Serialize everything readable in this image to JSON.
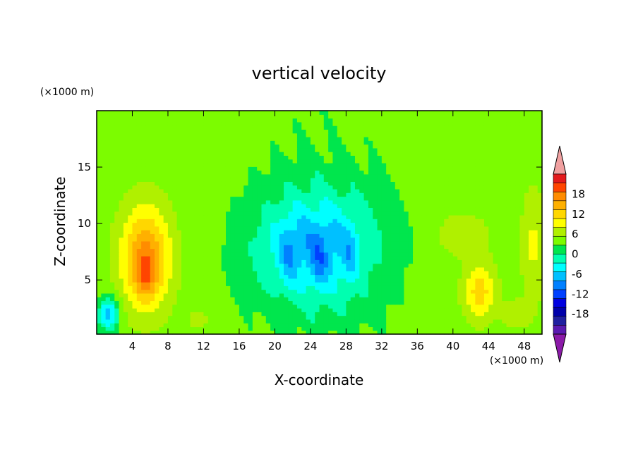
{
  "chart_data": {
    "type": "heatmap",
    "title": "vertical velocity",
    "xlabel": "X-coordinate",
    "ylabel": "Z-coordinate",
    "x_unit": "(×1000 m)",
    "y_unit": "(×1000 m)",
    "xlim": [
      0,
      50
    ],
    "ylim": [
      0.2,
      20
    ],
    "x_ticks": [
      4,
      8,
      12,
      16,
      20,
      24,
      28,
      32,
      36,
      40,
      44,
      48
    ],
    "y_ticks": [
      5,
      10,
      15
    ],
    "colorbar": {
      "labels": [
        "18",
        "12",
        "6",
        "0",
        "-6",
        "-12",
        "-18"
      ],
      "label_values": [
        18,
        12,
        6,
        0,
        -6,
        -12,
        -18
      ],
      "levels": [
        21,
        18,
        15,
        12,
        9,
        6,
        3,
        0,
        -3,
        -6,
        -9,
        -12,
        -15,
        -18,
        -21
      ],
      "colors": [
        "#e31a1c",
        "#ff4500",
        "#ff8c00",
        "#ffb000",
        "#ffd700",
        "#ffff00",
        "#b0f000",
        "#7cfc00",
        "#00e64d",
        "#00ffb0",
        "#00ffff",
        "#00c0ff",
        "#0080ff",
        "#0040ff",
        "#0000e0",
        "#0000aa",
        "#2020a0",
        "#5a1ab0"
      ],
      "top_color": "#f0a0a0",
      "bottom_color": "#8b1aa8"
    },
    "features": [
      {
        "kind": "updraft",
        "x": 5.5,
        "z": 7,
        "sx": 2.8,
        "sz": 4.5,
        "peak": 14
      },
      {
        "kind": "updraft",
        "x": 5.5,
        "z": 5.5,
        "sx": 1.2,
        "sz": 2,
        "peak": 6
      },
      {
        "kind": "updraft",
        "x": 43,
        "z": 4,
        "sx": 1.8,
        "sz": 2.5,
        "peak": 9
      },
      {
        "kind": "updraft",
        "x": 41,
        "z": 9,
        "sx": 3,
        "sz": 2,
        "peak": 4
      },
      {
        "kind": "updraft",
        "x": 11.5,
        "z": 1.5,
        "sx": 1.2,
        "sz": 1,
        "peak": 3
      },
      {
        "kind": "updraft",
        "x": 49,
        "z": 8,
        "sx": 1.3,
        "sz": 5,
        "peak": 5
      },
      {
        "kind": "updraft",
        "x": 47,
        "z": 2,
        "sx": 1.5,
        "sz": 1.2,
        "peak": 4
      },
      {
        "kind": "downdraft",
        "x": 25,
        "z": 8,
        "sx": 8,
        "sz": 7,
        "peak": -8
      },
      {
        "kind": "downdraft",
        "x": 24,
        "z": 8,
        "sx": 5.5,
        "sz": 3.5,
        "peak": -5
      },
      {
        "kind": "downdraft",
        "x": 21.5,
        "z": 7,
        "sx": 0.8,
        "sz": 2.5,
        "peak": -4
      },
      {
        "kind": "downdraft",
        "x": 25,
        "z": 6.5,
        "sx": 0.8,
        "sz": 2.5,
        "peak": -4
      },
      {
        "kind": "downdraft",
        "x": 28.5,
        "z": 7,
        "sx": 0.8,
        "sz": 2.5,
        "peak": -4
      },
      {
        "kind": "downdraft",
        "x": 1.3,
        "z": 2,
        "sx": 1.2,
        "sz": 1.5,
        "peak": -12
      }
    ]
  }
}
